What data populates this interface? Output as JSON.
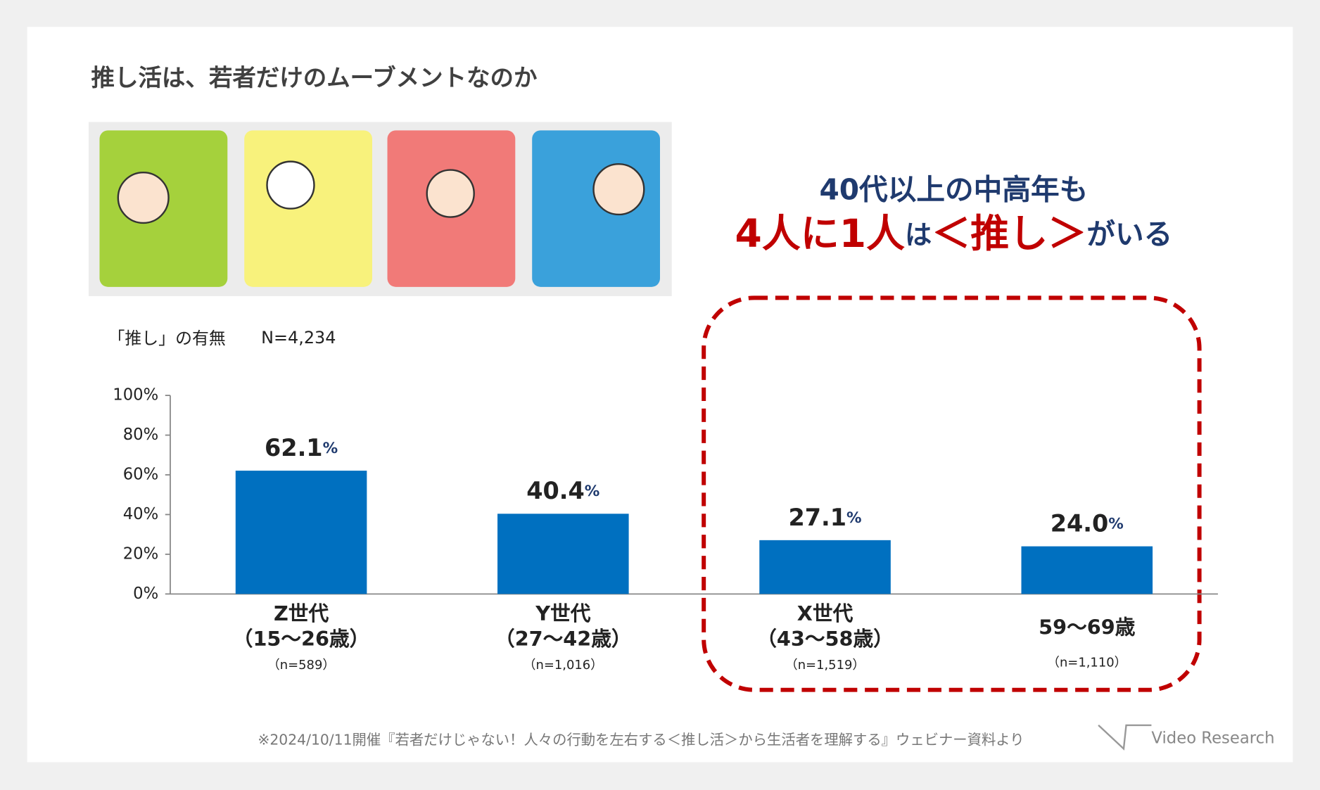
{
  "header": {
    "title": "推し活は、若者だけのムーブメントなのか"
  },
  "headline": {
    "line1": "40代以上の中高年も",
    "line2": [
      "4人に1人",
      "は",
      "＜推し＞",
      "がいる"
    ]
  },
  "chart_data": {
    "type": "bar",
    "title": "「推し」の有無",
    "subtitle": "N=4,234",
    "categories": [
      [
        "Z世代",
        "（15～26歳）"
      ],
      [
        "Y世代",
        "（27～42歳）"
      ],
      [
        "X世代",
        "（43～58歳）"
      ],
      [
        "59～69歳"
      ]
    ],
    "sample_sizes": [
      "（n=589）",
      "（n=1,016）",
      "（n=1,519）",
      "（n=1,110）"
    ],
    "values": [
      62.1,
      40.4,
      27.1,
      24.0
    ],
    "value_labels": [
      "62.1%",
      "40.4%",
      "27.1%",
      "24.0%"
    ],
    "color": "#0070c0",
    "ylim": [
      0,
      100
    ],
    "yticks": [
      {
        "value": 0,
        "label": "0%"
      },
      {
        "value": 20,
        "label": "20%"
      },
      {
        "value": 40,
        "label": "40%"
      },
      {
        "value": 60,
        "label": "60%"
      },
      {
        "value": 80,
        "label": "80%"
      },
      {
        "value": 100,
        "label": "100%"
      }
    ],
    "grid": false
  },
  "footer": {
    "source": "※2024/10/11開催『若者だけじゃない！人々の行動を左右する＜推し活＞から生活者を理解する』ウェビナー資料より",
    "logo": "Video Research"
  }
}
